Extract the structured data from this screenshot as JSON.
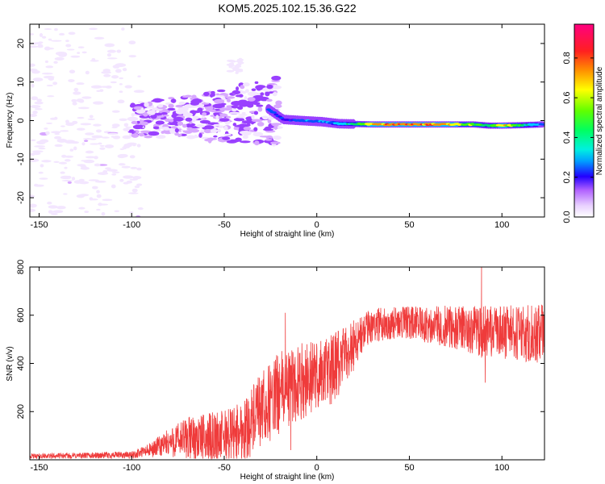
{
  "title": "KOM5.2025.102.15.36.G22",
  "colors": {
    "snr_line": "#ef3b3b",
    "colormap": [
      "#f3e6ff",
      "#d8a8ff",
      "#9a40ff",
      "#3b00ff",
      "#0050ff",
      "#00ccff",
      "#00e070",
      "#40ff00",
      "#ffff00",
      "#ff9000",
      "#ff2020",
      "#ff0080"
    ]
  },
  "chart_data": [
    {
      "type": "heatmap",
      "xlabel": "Height of straight line (km)",
      "ylabel": "Frequency (Hz)",
      "xlim": [
        -155,
        123
      ],
      "ylim": [
        -25,
        25
      ],
      "xticks": [
        -150,
        -100,
        -50,
        0,
        50,
        100
      ],
      "yticks": [
        -20,
        -10,
        0,
        10,
        20
      ],
      "colorbar": {
        "label": "Normalized spectral amplitude",
        "range": [
          0,
          0.97
        ],
        "ticks": [
          "0.0",
          "0.2",
          "0.4",
          "0.6",
          "0.8"
        ]
      },
      "ridge": [
        {
          "x": -26,
          "f": 3.0,
          "amp": 0.45
        },
        {
          "x": -18,
          "f": 0.3,
          "amp": 0.35
        },
        {
          "x": -8,
          "f": 0.0,
          "amp": 0.45
        },
        {
          "x": 3,
          "f": -0.3,
          "amp": 0.45
        },
        {
          "x": 12,
          "f": -0.8,
          "amp": 0.5
        },
        {
          "x": 22,
          "f": -0.9,
          "amp": 0.65
        },
        {
          "x": 30,
          "f": -1.0,
          "amp": 0.88
        },
        {
          "x": 50,
          "f": -1.0,
          "amp": 0.95
        },
        {
          "x": 70,
          "f": -1.0,
          "amp": 0.88
        },
        {
          "x": 85,
          "f": -1.0,
          "amp": 0.7
        },
        {
          "x": 93,
          "f": -1.3,
          "amp": 0.6
        },
        {
          "x": 100,
          "f": -1.3,
          "amp": 0.88
        },
        {
          "x": 110,
          "f": -1.2,
          "amp": 0.65
        },
        {
          "x": 122,
          "f": -1.0,
          "amp": 0.45
        }
      ]
    },
    {
      "type": "line",
      "xlabel": "Height of straight line (km)",
      "ylabel": "SNR (v/v)",
      "xlim": [
        -155,
        123
      ],
      "ylim": [
        0,
        800
      ],
      "xticks": [
        -150,
        -100,
        -50,
        0,
        50,
        100
      ],
      "yticks": [
        200,
        400,
        600,
        800
      ],
      "series": [
        {
          "envelope": [
            {
              "x": -155,
              "mean": 15,
              "spread": 10
            },
            {
              "x": -100,
              "mean": 20,
              "spread": 15
            },
            {
              "x": -90,
              "mean": 40,
              "spread": 30
            },
            {
              "x": -80,
              "mean": 70,
              "spread": 60
            },
            {
              "x": -70,
              "mean": 90,
              "spread": 90
            },
            {
              "x": -60,
              "mean": 90,
              "spread": 100
            },
            {
              "x": -50,
              "mean": 100,
              "spread": 110
            },
            {
              "x": -40,
              "mean": 120,
              "spread": 130
            },
            {
              "x": -30,
              "mean": 200,
              "spread": 160
            },
            {
              "x": -20,
              "mean": 280,
              "spread": 170
            },
            {
              "x": -10,
              "mean": 320,
              "spread": 160
            },
            {
              "x": 0,
              "mean": 350,
              "spread": 150
            },
            {
              "x": 10,
              "mean": 380,
              "spread": 150
            },
            {
              "x": 20,
              "mean": 480,
              "spread": 110
            },
            {
              "x": 30,
              "mean": 560,
              "spread": 70
            },
            {
              "x": 45,
              "mean": 570,
              "spread": 65
            },
            {
              "x": 60,
              "mean": 560,
              "spread": 80
            },
            {
              "x": 80,
              "mean": 545,
              "spread": 95
            },
            {
              "x": 90,
              "mean": 530,
              "spread": 110
            },
            {
              "x": 100,
              "mean": 530,
              "spread": 110
            },
            {
              "x": 123,
              "mean": 520,
              "spread": 125
            }
          ],
          "features": [
            {
              "x": 89,
              "y": 800
            },
            {
              "x": 91,
              "y": 320
            },
            {
              "x": -17,
              "y": 610
            },
            {
              "x": -14,
              "y": 40
            }
          ]
        }
      ]
    }
  ]
}
